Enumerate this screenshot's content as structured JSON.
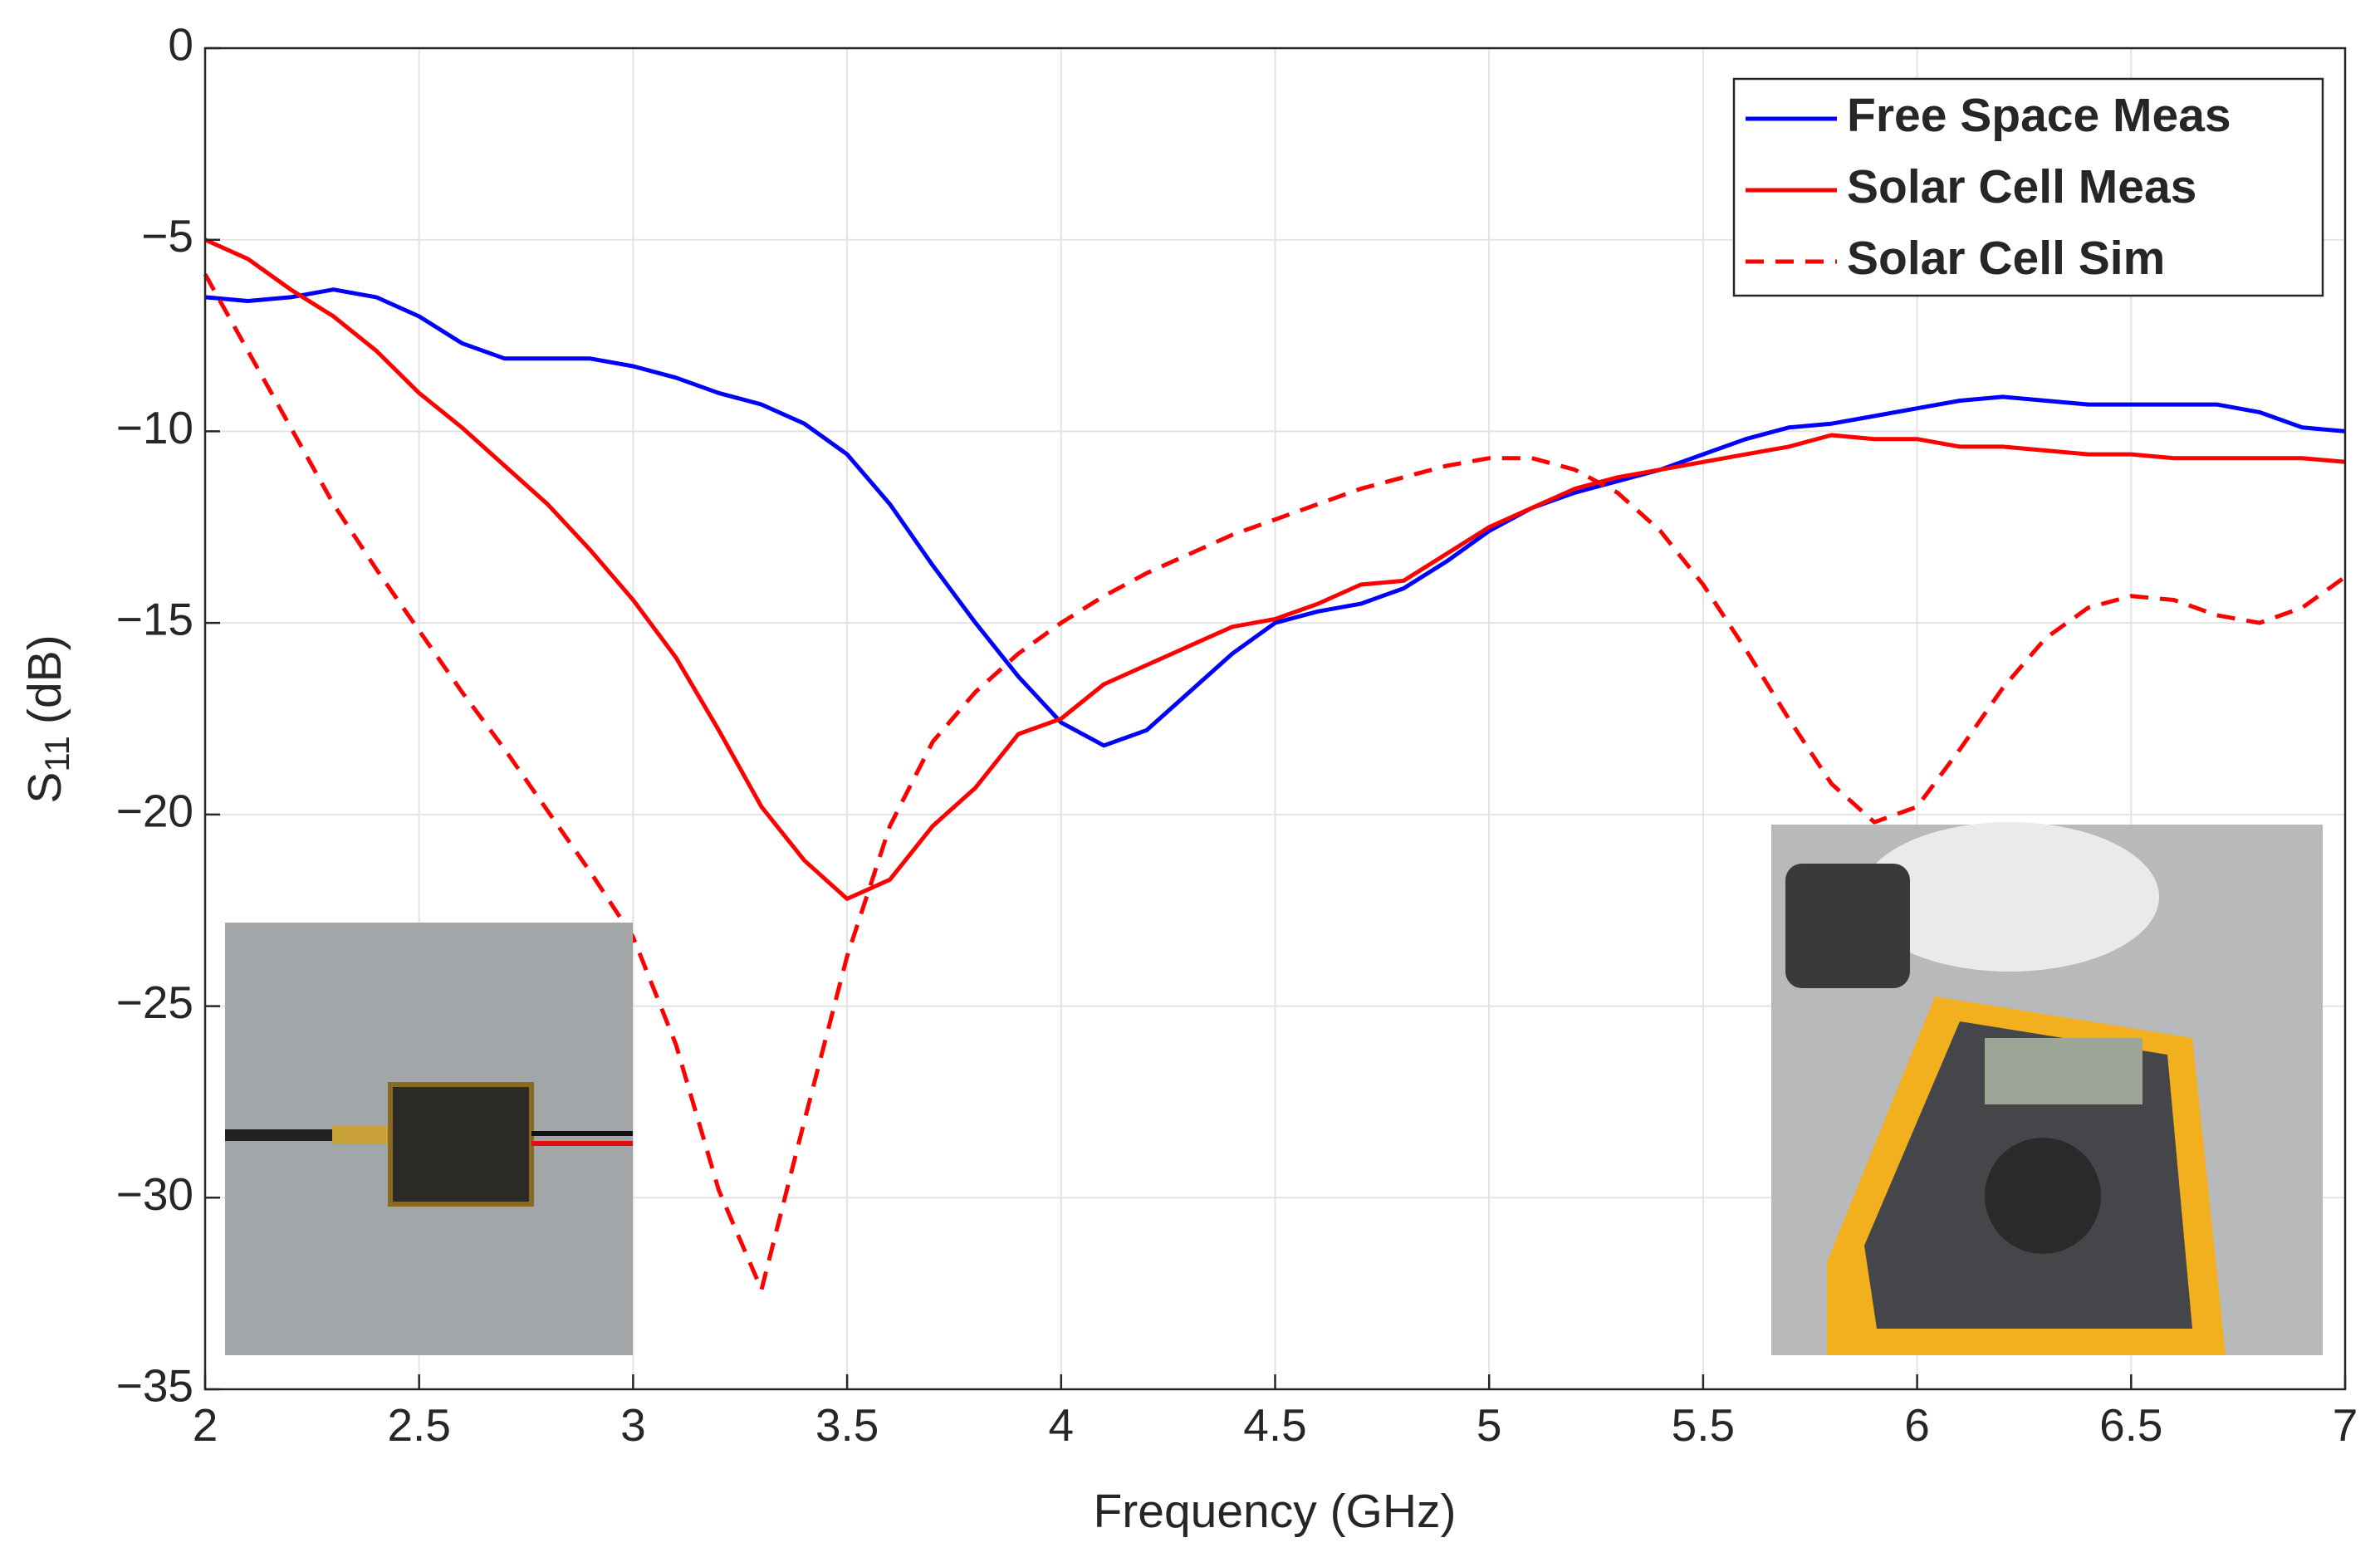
{
  "chart_data": {
    "type": "line",
    "xlabel": "Frequency (GHz)",
    "ylabel": {
      "symbol": "S",
      "subscript": "11",
      "unit": "(dB)"
    },
    "xlim": [
      2,
      7
    ],
    "ylim": [
      -35,
      0
    ],
    "xticks": [
      2,
      2.5,
      3,
      3.5,
      4,
      4.5,
      5,
      5.5,
      6,
      6.5,
      7
    ],
    "yticks": [
      {
        "value": -35,
        "label": "−35"
      },
      {
        "value": -30,
        "label": "−30"
      },
      {
        "value": -25,
        "label": "−25"
      },
      {
        "value": -20,
        "label": "−20"
      },
      {
        "value": -15,
        "label": "−15"
      },
      {
        "value": -10,
        "label": "−10"
      },
      {
        "value": -5,
        "label": "−5"
      },
      0
    ],
    "grid": true,
    "legend": "northeast",
    "x": [
      2.0,
      2.1,
      2.2,
      2.3,
      2.4,
      2.5,
      2.6,
      2.7,
      2.8,
      2.9,
      3.0,
      3.1,
      3.2,
      3.3,
      3.4,
      3.5,
      3.6,
      3.7,
      3.8,
      3.9,
      4.0,
      4.1,
      4.2,
      4.3,
      4.4,
      4.5,
      4.6,
      4.7,
      4.8,
      4.9,
      5.0,
      5.1,
      5.2,
      5.3,
      5.4,
      5.5,
      5.6,
      5.7,
      5.8,
      5.9,
      6.0,
      6.1,
      6.2,
      6.3,
      6.4,
      6.5,
      6.6,
      6.7,
      6.8,
      6.9,
      7.0
    ],
    "series": [
      {
        "name": "Free Space Meas",
        "color": "#0000ff",
        "linestyle": "solid",
        "values": [
          -6.5,
          -6.6,
          -6.5,
          -6.3,
          -6.5,
          -7.0,
          -7.7,
          -8.1,
          -8.1,
          -8.1,
          -8.3,
          -8.6,
          -9.0,
          -9.3,
          -9.8,
          -10.6,
          -11.9,
          -13.5,
          -15.0,
          -16.4,
          -17.6,
          -18.2,
          -17.8,
          -16.8,
          -15.8,
          -15.0,
          -14.7,
          -14.5,
          -14.1,
          -13.4,
          -12.6,
          -12.0,
          -11.6,
          -11.3,
          -11.0,
          -10.6,
          -10.2,
          -9.9,
          -9.8,
          -9.6,
          -9.4,
          -9.2,
          -9.1,
          -9.2,
          -9.3,
          -9.3,
          -9.3,
          -9.3,
          -9.5,
          -9.9,
          -10.0
        ]
      },
      {
        "name": "Solar Cell Meas",
        "color": "#ff0000",
        "linestyle": "solid",
        "values": [
          -5.0,
          -5.5,
          -6.3,
          -7.0,
          -7.9,
          -9.0,
          -9.9,
          -10.9,
          -11.9,
          -13.1,
          -14.4,
          -15.9,
          -17.8,
          -19.8,
          -21.2,
          -22.2,
          -21.7,
          -20.3,
          -19.3,
          -17.9,
          -17.5,
          -16.6,
          -16.1,
          -15.6,
          -15.1,
          -14.9,
          -14.5,
          -14.0,
          -13.9,
          -13.2,
          -12.5,
          -12.0,
          -11.5,
          -11.2,
          -11.0,
          -10.8,
          -10.6,
          -10.4,
          -10.1,
          -10.2,
          -10.2,
          -10.4,
          -10.4,
          -10.5,
          -10.6,
          -10.6,
          -10.7,
          -10.7,
          -10.7,
          -10.7,
          -10.8
        ]
      },
      {
        "name": "Solar Cell Sim",
        "color": "#ff0000",
        "linestyle": "dashed",
        "values": [
          -5.9,
          -7.9,
          -9.9,
          -11.9,
          -13.6,
          -15.2,
          -16.8,
          -18.3,
          -19.9,
          -21.5,
          -23.2,
          -26.0,
          -29.8,
          -32.4,
          -28.0,
          -23.7,
          -20.3,
          -18.1,
          -16.8,
          -15.8,
          -15.0,
          -14.3,
          -13.7,
          -13.2,
          -12.7,
          -12.3,
          -11.9,
          -11.5,
          -11.2,
          -10.9,
          -10.7,
          -10.7,
          -11.0,
          -11.6,
          -12.6,
          -14.0,
          -15.7,
          -17.5,
          -19.2,
          -20.2,
          -19.8,
          -18.3,
          -16.7,
          -15.4,
          -14.6,
          -14.3,
          -14.4,
          -14.8,
          -15.0,
          -14.6,
          -13.8
        ]
      }
    ]
  }
}
